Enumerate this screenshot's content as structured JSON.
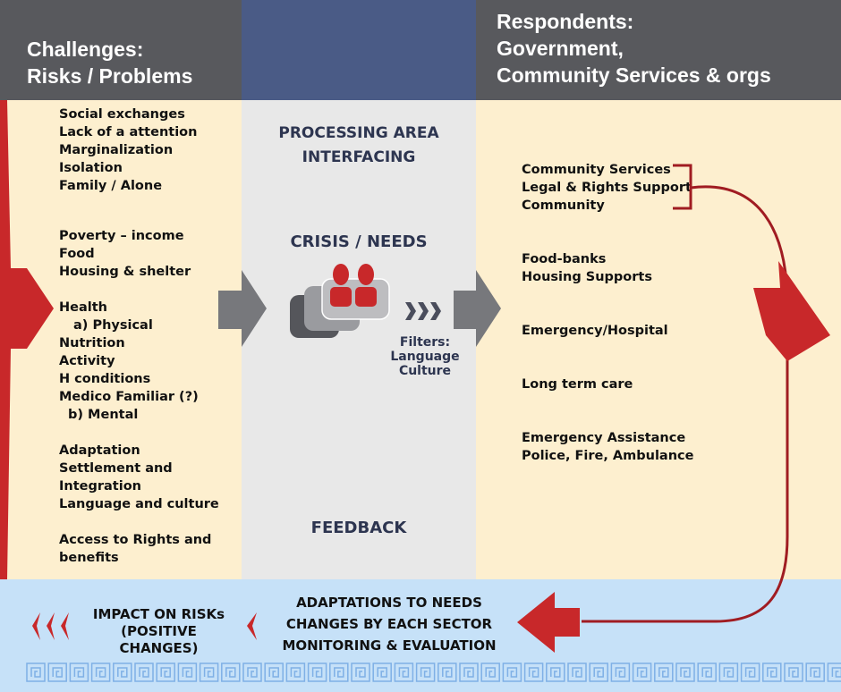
{
  "header": {
    "left": [
      "Challenges:",
      "Risks / Problems"
    ],
    "right": [
      "Respondents:",
      "Government,",
      "Community Services & orgs"
    ]
  },
  "challenges": [
    "Social exchanges",
    "Lack of a  attention",
    "Marginalization",
    "Isolation",
    "Family / Alone",
    "Poverty – income",
    "Food",
    "Housing & shelter",
    "Health",
    "a) Physical",
    "Nutrition",
    "Activity",
    "H conditions",
    "Medico Familiar (?)",
    "b) Mental",
    "Adaptation",
    "Settlement and",
    "Integration",
    "Language and culture",
    "Access to Rights and",
    "benefits"
  ],
  "processing": {
    "title1": "PROCESSING AREA",
    "title2": "INTERFACING",
    "crisis": "CRISIS / NEEDS",
    "filters": [
      "Filters:",
      "Language",
      "Culture"
    ],
    "feedback": "FEEDBACK"
  },
  "respondents": [
    "Community Services",
    "Legal & Rights Support",
    "Community",
    "Food-banks",
    "Housing Supports",
    "Emergency/Hospital",
    "Long term care",
    "Emergency Assistance",
    "Police, Fire, Ambulance"
  ],
  "bottom": {
    "impact": [
      "IMPACT ON RISKs",
      "(POSITIVE CHANGES)"
    ],
    "adaptations": [
      "ADAPTATIONS TO NEEDS",
      "CHANGES BY EACH SECTOR",
      "MONITORING & EVALUATION"
    ]
  },
  "colors": {
    "header_gray": "#58595d",
    "header_blue": "#4a5b86",
    "cream": "#fdefcf",
    "middle": "#e8e8e8",
    "bottom": "#c6e1f8",
    "red": "#c8282a",
    "arrow_gray": "#77787c"
  }
}
